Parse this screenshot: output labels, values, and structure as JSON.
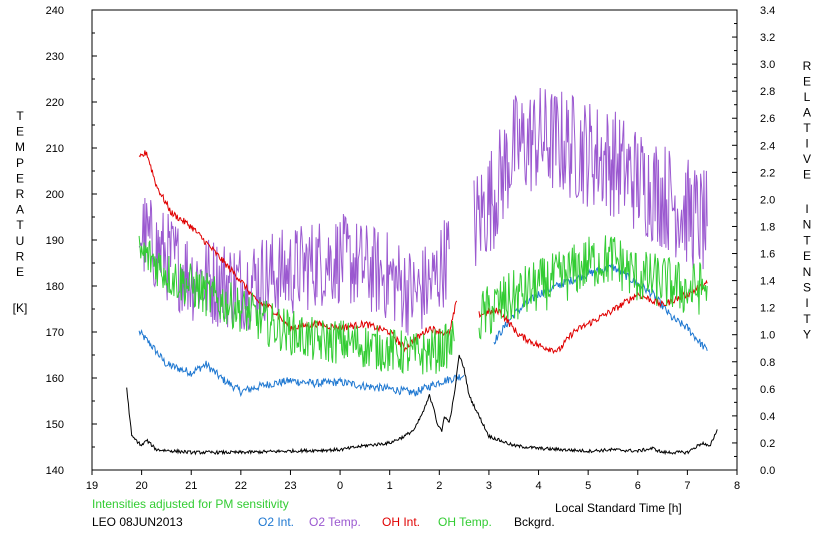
{
  "chart_data": {
    "type": "line",
    "xlabel": "Local Standard Time [h]",
    "xlim": [
      19,
      32
    ],
    "x_ticks": [
      19,
      20,
      21,
      22,
      23,
      24,
      25,
      26,
      27,
      28,
      29,
      30,
      31,
      32
    ],
    "x_tick_labels": [
      "19",
      "20",
      "21",
      "22",
      "23",
      "0",
      "1",
      "2",
      "3",
      "4",
      "5",
      "6",
      "7",
      "8"
    ],
    "left_axis": {
      "label_letters": [
        "T",
        "E",
        "M",
        "P",
        "E",
        "R",
        "A",
        "T",
        "U",
        "R",
        "E"
      ],
      "unit": "[K]",
      "ylim": [
        140,
        240
      ],
      "ticks": [
        "140",
        "150",
        "160",
        "170",
        "180",
        "190",
        "200",
        "210",
        "220",
        "230",
        "240"
      ]
    },
    "right_axis": {
      "label_word1": [
        "R",
        "E",
        "L",
        "A",
        "T",
        "I",
        "V",
        "E"
      ],
      "label_word2": [
        "I",
        "N",
        "T",
        "E",
        "N",
        "S",
        "I",
        "T",
        "Y"
      ],
      "ylim": [
        0,
        3.4
      ],
      "ticks": [
        "0.0",
        "0.2",
        "0.4",
        "0.6",
        "0.8",
        "1.0",
        "1.2",
        "1.4",
        "1.6",
        "1.8",
        "2.0",
        "2.2",
        "2.4",
        "2.6",
        "2.8",
        "3.0",
        "3.2",
        "3.4"
      ]
    },
    "note": "Intensities adjusted for PM sensitivity",
    "station": "LEO 08JUN2013",
    "legend": [
      {
        "label": "O2 Int.",
        "color": "#1f78d1"
      },
      {
        "label": "O2 Temp.",
        "color": "#9b59d0"
      },
      {
        "label": "OH Int.",
        "color": "#e00000"
      },
      {
        "label": "OH Temp.",
        "color": "#33cc33"
      },
      {
        "label": "Bckgrd.",
        "color": "#000000"
      }
    ],
    "series": [
      {
        "name": "O2 Int.",
        "axis": "right",
        "color": "#1f78d1",
        "noise": 0.03,
        "points": [
          [
            19.95,
            1.02
          ],
          [
            20.2,
            0.92
          ],
          [
            20.5,
            0.78
          ],
          [
            21,
            0.72
          ],
          [
            21.3,
            0.78
          ],
          [
            21.6,
            0.68
          ],
          [
            22,
            0.58
          ],
          [
            22.5,
            0.63
          ],
          [
            23,
            0.66
          ],
          [
            23.5,
            0.64
          ],
          [
            24,
            0.65
          ],
          [
            24.5,
            0.62
          ],
          [
            25,
            0.6
          ],
          [
            25.5,
            0.57
          ],
          [
            26,
            0.65
          ],
          [
            26.5,
            0.7
          ]
        ]
      },
      {
        "name": "O2 Int.",
        "axis": "right",
        "color": "#1f78d1",
        "noise": 0.03,
        "points": [
          [
            27.1,
            0.95
          ],
          [
            27.5,
            1.15
          ],
          [
            28,
            1.3
          ],
          [
            28.5,
            1.38
          ],
          [
            29,
            1.45
          ],
          [
            29.5,
            1.5
          ],
          [
            29.9,
            1.4
          ],
          [
            30.3,
            1.3
          ],
          [
            30.7,
            1.12
          ],
          [
            31,
            1.05
          ],
          [
            31.4,
            0.88
          ]
        ]
      },
      {
        "name": "O2 Temp.",
        "axis": "left",
        "color": "#9b59d0",
        "noise": 10,
        "points": [
          [
            19.95,
            192
          ],
          [
            20.3,
            188
          ],
          [
            20.7,
            185
          ],
          [
            21,
            182
          ],
          [
            21.5,
            181
          ],
          [
            22,
            180
          ],
          [
            22.5,
            182
          ],
          [
            23,
            183
          ],
          [
            23.5,
            185
          ],
          [
            24,
            186
          ],
          [
            24.5,
            184
          ],
          [
            25,
            182
          ],
          [
            25.5,
            178
          ],
          [
            25.9,
            181
          ],
          [
            26.2,
            188
          ]
        ]
      },
      {
        "name": "O2 Temp.",
        "axis": "left",
        "color": "#9b59d0",
        "noise": 12,
        "points": [
          [
            26.7,
            193
          ],
          [
            27.1,
            200
          ],
          [
            27.5,
            210
          ],
          [
            28,
            212
          ],
          [
            28.5,
            211
          ],
          [
            29,
            209
          ],
          [
            29.5,
            207
          ],
          [
            30,
            203
          ],
          [
            30.5,
            200
          ],
          [
            31,
            196
          ],
          [
            31.4,
            193
          ]
        ]
      },
      {
        "name": "OH Int.",
        "axis": "right",
        "color": "#e00000",
        "noise": 0.025,
        "points": [
          [
            19.95,
            2.3
          ],
          [
            20.1,
            2.35
          ],
          [
            20.3,
            2.1
          ],
          [
            20.6,
            1.9
          ],
          [
            21,
            1.8
          ],
          [
            21.5,
            1.6
          ],
          [
            22,
            1.4
          ],
          [
            22.3,
            1.25
          ],
          [
            22.6,
            1.2
          ],
          [
            23,
            1.05
          ],
          [
            23.5,
            1.08
          ],
          [
            24,
            1.05
          ],
          [
            24.5,
            1.08
          ],
          [
            25,
            1.02
          ],
          [
            25.3,
            0.9
          ],
          [
            25.8,
            1.05
          ],
          [
            26.2,
            1.0
          ],
          [
            26.35,
            1.25
          ]
        ]
      },
      {
        "name": "OH Int.",
        "axis": "right",
        "color": "#e00000",
        "noise": 0.025,
        "points": [
          [
            26.8,
            1.15
          ],
          [
            27.2,
            1.18
          ],
          [
            27.6,
            1.0
          ],
          [
            28,
            0.92
          ],
          [
            28.4,
            0.88
          ],
          [
            28.7,
            1.02
          ],
          [
            29,
            1.08
          ],
          [
            29.5,
            1.18
          ],
          [
            30,
            1.3
          ],
          [
            30.5,
            1.22
          ],
          [
            31,
            1.3
          ],
          [
            31.4,
            1.38
          ]
        ]
      },
      {
        "name": "OH Temp.",
        "axis": "left",
        "color": "#33cc33",
        "noise": 5,
        "points": [
          [
            19.95,
            187
          ],
          [
            20.2,
            186
          ],
          [
            20.6,
            182
          ],
          [
            21,
            180
          ],
          [
            21.5,
            177
          ],
          [
            22,
            175
          ],
          [
            22.5,
            172
          ],
          [
            23,
            170
          ],
          [
            23.5,
            168
          ],
          [
            24,
            168
          ],
          [
            24.5,
            167
          ],
          [
            25,
            166
          ],
          [
            25.5,
            165
          ],
          [
            26,
            166
          ],
          [
            26.3,
            168
          ]
        ]
      },
      {
        "name": "OH Temp.",
        "axis": "left",
        "color": "#33cc33",
        "noise": 6,
        "points": [
          [
            26.8,
            173
          ],
          [
            27.2,
            176
          ],
          [
            27.6,
            178
          ],
          [
            28,
            180
          ],
          [
            28.5,
            182
          ],
          [
            29,
            185
          ],
          [
            29.5,
            186
          ],
          [
            30,
            182
          ],
          [
            30.5,
            181
          ],
          [
            31,
            179
          ],
          [
            31.4,
            180
          ]
        ]
      },
      {
        "name": "Bckgrd.",
        "axis": "right",
        "color": "#000000",
        "noise": 0.012,
        "points": [
          [
            19.7,
            0.6
          ],
          [
            19.8,
            0.25
          ],
          [
            20,
            0.18
          ],
          [
            20.1,
            0.22
          ],
          [
            20.3,
            0.15
          ],
          [
            21,
            0.13
          ],
          [
            22,
            0.13
          ],
          [
            23,
            0.14
          ],
          [
            24,
            0.15
          ],
          [
            24.5,
            0.18
          ],
          [
            25,
            0.2
          ],
          [
            25.3,
            0.25
          ],
          [
            25.5,
            0.3
          ],
          [
            25.7,
            0.45
          ],
          [
            25.8,
            0.55
          ],
          [
            25.9,
            0.45
          ],
          [
            25.95,
            0.35
          ],
          [
            26.05,
            0.28
          ],
          [
            26.1,
            0.4
          ],
          [
            26.2,
            0.35
          ],
          [
            26.3,
            0.55
          ],
          [
            26.4,
            0.85
          ],
          [
            26.5,
            0.75
          ],
          [
            26.6,
            0.55
          ],
          [
            26.8,
            0.4
          ],
          [
            27,
            0.25
          ],
          [
            27.5,
            0.18
          ],
          [
            28,
            0.16
          ],
          [
            29,
            0.14
          ],
          [
            29.5,
            0.15
          ],
          [
            30,
            0.14
          ],
          [
            30.3,
            0.16
          ],
          [
            30.5,
            0.13
          ],
          [
            31,
            0.13
          ],
          [
            31.3,
            0.2
          ],
          [
            31.45,
            0.17
          ],
          [
            31.6,
            0.3
          ]
        ]
      }
    ]
  }
}
